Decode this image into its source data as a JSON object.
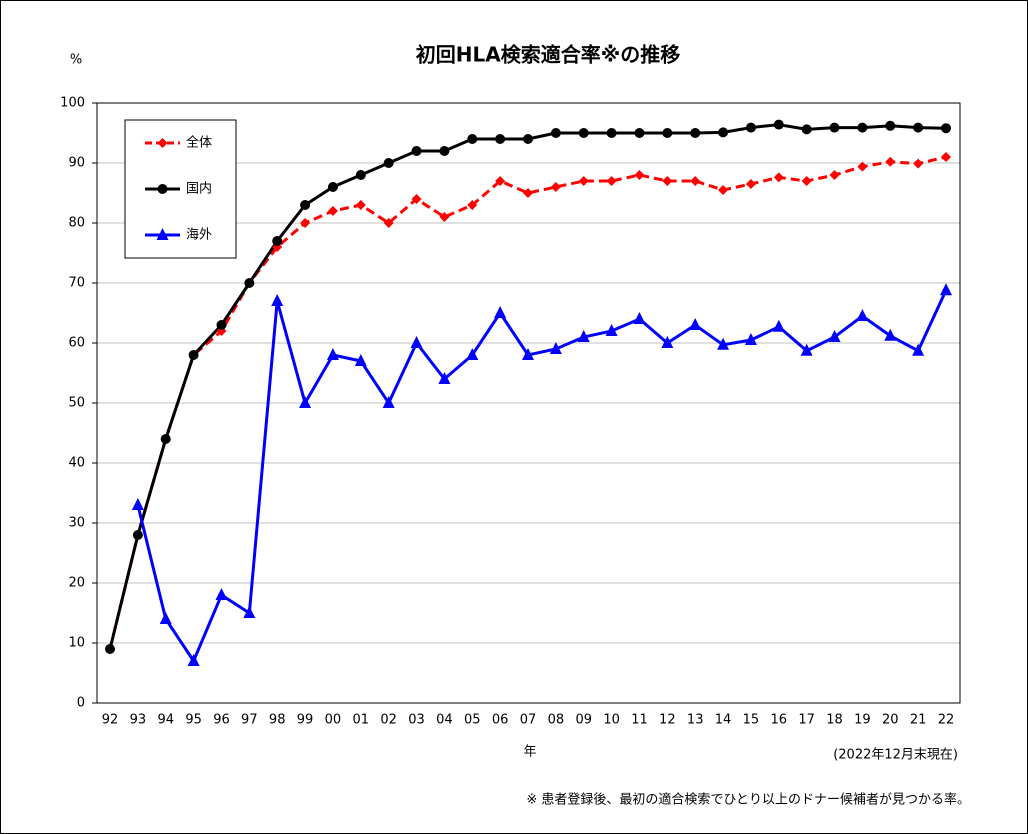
{
  "chart_data": {
    "type": "line",
    "title": "初回HLA検索適合率※の推移",
    "y_label": "%",
    "x_label": "年",
    "note": "(2022年12月末現在)",
    "footnote": "※ 患者登録後、最初の適合検索でひとり以上のドナー候補者が見つかる率。",
    "categories": [
      "92",
      "93",
      "94",
      "95",
      "96",
      "97",
      "98",
      "99",
      "00",
      "01",
      "02",
      "03",
      "04",
      "05",
      "06",
      "07",
      "08",
      "09",
      "10",
      "11",
      "12",
      "13",
      "14",
      "15",
      "16",
      "17",
      "18",
      "19",
      "20",
      "21",
      "22"
    ],
    "series": [
      {
        "name": "全体",
        "color": "#ff0000",
        "marker": "diamond",
        "dashed": true,
        "values": [
          9,
          28,
          44,
          58,
          62,
          70,
          76,
          80,
          82,
          83,
          80,
          84,
          81,
          83,
          87,
          85,
          86,
          87,
          87,
          88,
          87,
          87,
          85.5,
          86.5,
          87.6,
          87,
          88,
          89.4,
          90.2,
          89.9,
          91
        ]
      },
      {
        "name": "国内",
        "color": "#000000",
        "marker": "circle",
        "dashed": false,
        "values": [
          9,
          28,
          44,
          58,
          63,
          70,
          77,
          83,
          86,
          88,
          90,
          92,
          92,
          94,
          94,
          94,
          95,
          95,
          95,
          95,
          95,
          95,
          95.1,
          95.9,
          96.4,
          95.6,
          95.9,
          95.9,
          96.2,
          95.9,
          95.8
        ]
      },
      {
        "name": "海外",
        "color": "#0000ff",
        "marker": "triangle",
        "dashed": false,
        "values": [
          null,
          33,
          14,
          7,
          18,
          15,
          67,
          50,
          58,
          57,
          50,
          60,
          54,
          58,
          65,
          58,
          59,
          61,
          62,
          64,
          60,
          63,
          59.7,
          60.5,
          62.7,
          58.7,
          61,
          64.5,
          61.2,
          58.7,
          68.8
        ]
      }
    ],
    "ylim": [
      0,
      100
    ],
    "yticks": [
      0,
      10,
      20,
      30,
      40,
      50,
      60,
      70,
      80,
      90,
      100
    ],
    "grid": true,
    "legend": "upper left"
  }
}
